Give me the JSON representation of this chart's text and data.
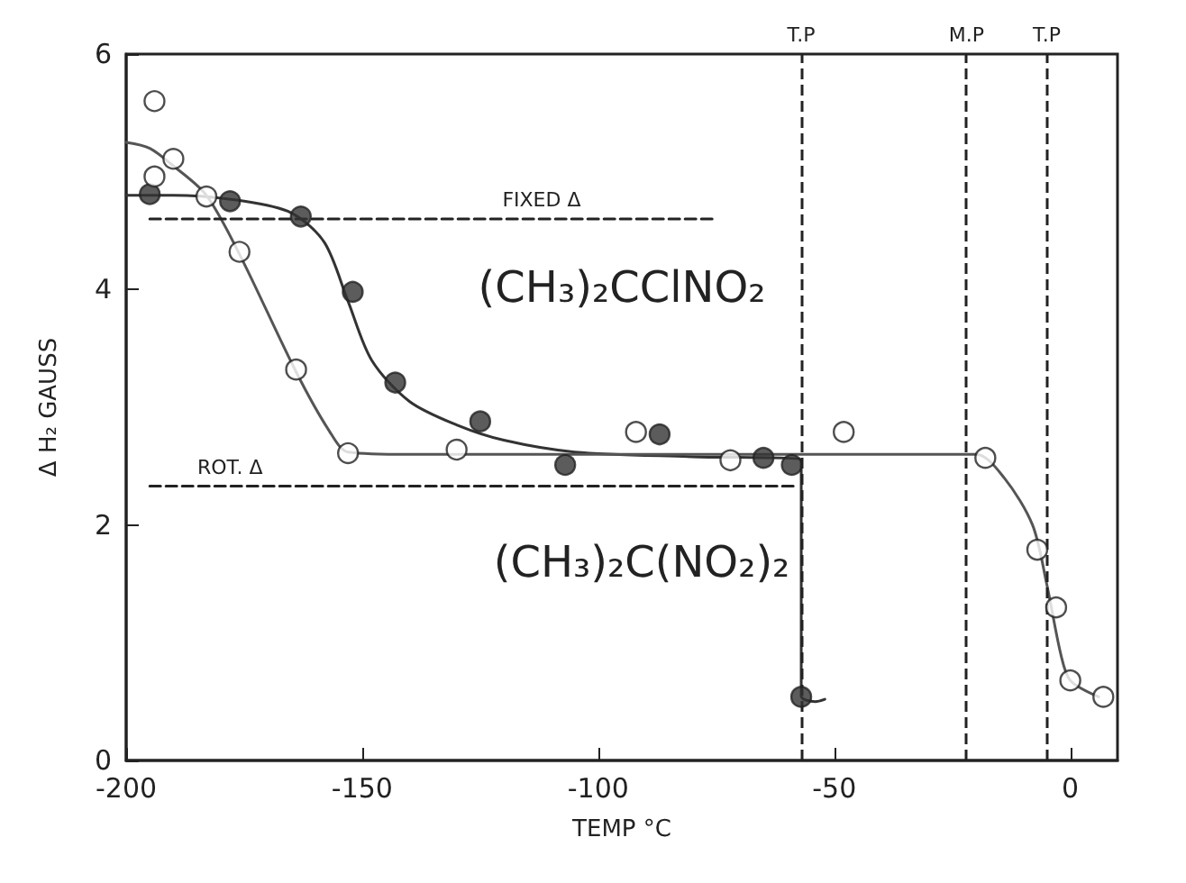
{
  "chart_data": {
    "type": "scatter",
    "xlabel": "TEMP °C",
    "ylabel": "Δ H₂ GAUSS",
    "xlim": [
      -200,
      10
    ],
    "xticks": [
      -200,
      -150,
      -100,
      -50,
      0
    ],
    "ylim": [
      0,
      6
    ],
    "yticks": [
      0,
      2,
      4,
      6
    ],
    "grid": false,
    "legend": false,
    "marker": "circle",
    "series": [
      {
        "type": "line",
        "color": "#333333",
        "line_style": "solid",
        "marker": "none",
        "x": [
          -200,
          -190,
          -175,
          -165,
          -158,
          -153,
          -148,
          -140,
          -130,
          -120,
          -105,
          -80,
          -57,
          -57,
          -54,
          -52
        ],
        "values": [
          4.8,
          4.8,
          4.75,
          4.65,
          4.4,
          3.9,
          3.4,
          3.05,
          2.85,
          2.72,
          2.62,
          2.58,
          2.55,
          0.55,
          0.5,
          0.52
        ]
      },
      {
        "type": "line",
        "color": "#555555",
        "line_style": "solid",
        "marker": "none",
        "x": [
          -200,
          -195,
          -190,
          -183,
          -176,
          -164,
          -157,
          -153,
          -140,
          -100,
          -20,
          -14,
          -8,
          -5,
          -2,
          0,
          6
        ],
        "values": [
          5.25,
          5.2,
          5.05,
          4.8,
          4.3,
          3.3,
          2.8,
          2.62,
          2.6,
          2.6,
          2.6,
          2.4,
          2.0,
          1.5,
          0.9,
          0.68,
          0.54
        ]
      },
      {
        "type": "line",
        "name": "FIXED Δ",
        "color": "#222222",
        "line_style": "dashed",
        "marker": "none",
        "x": [
          -195,
          -112,
          -75
        ],
        "values": [
          4.6,
          4.6,
          4.6
        ]
      },
      {
        "type": "line",
        "name": "ROT. Δ",
        "color": "#222222",
        "line_style": "dashed",
        "marker": "none",
        "x": [
          -195,
          -178,
          -58
        ],
        "values": [
          2.33,
          2.33,
          2.33
        ]
      },
      {
        "color": "#333333",
        "x": [
          -195,
          -178,
          -163,
          -152,
          -143,
          -125,
          -107,
          -87,
          -65,
          -59,
          -57
        ],
        "values": [
          4.81,
          4.75,
          4.62,
          3.98,
          3.21,
          2.88,
          2.51,
          2.77,
          2.57,
          2.51,
          0.54
        ]
      },
      {
        "color": "#ffffff",
        "x": [
          -194,
          -194,
          -190,
          -183,
          -176,
          -164,
          -153,
          -130,
          -92,
          -72,
          -48,
          -18,
          -7,
          -3,
          0,
          7
        ],
        "values": [
          5.6,
          4.96,
          5.11,
          4.79,
          4.32,
          3.32,
          2.61,
          2.64,
          2.79,
          2.55,
          2.79,
          2.57,
          1.79,
          1.3,
          0.68,
          0.54
        ]
      }
    ],
    "ref_lines": [
      {
        "axis": "x",
        "value": -57,
        "label": "T.P",
        "line_style": "dashed"
      },
      {
        "axis": "x",
        "value": -22,
        "label": "M.P",
        "line_style": "dashed"
      },
      {
        "axis": "x",
        "value": -5,
        "label": "T.P",
        "line_style": "dashed"
      }
    ],
    "annotations": [
      "(CH₃)₂CClNO₂",
      "(CH₃)₂C(NO₂)₂"
    ]
  }
}
